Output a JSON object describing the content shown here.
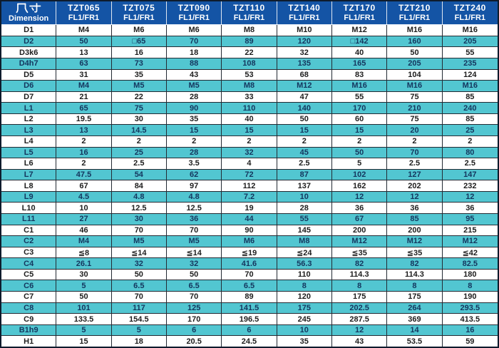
{
  "table": {
    "corner": {
      "label_cn": "尺寸",
      "label_en": "Dimension"
    },
    "columns": [
      {
        "model": "TZT065",
        "variant": "FL1/FR1"
      },
      {
        "model": "TZT075",
        "variant": "FL1/FR1"
      },
      {
        "model": "TZT090",
        "variant": "FL1/FR1"
      },
      {
        "model": "TZT110",
        "variant": "FL1/FR1"
      },
      {
        "model": "TZT140",
        "variant": "FL1/FR1"
      },
      {
        "model": "TZT170",
        "variant": "FL1/FR1"
      },
      {
        "model": "TZT210",
        "variant": "FL1/FR1"
      },
      {
        "model": "TZT240",
        "variant": "FL1/FR1"
      }
    ],
    "rows": [
      {
        "label": "D1",
        "values": [
          "M4",
          "M6",
          "M6",
          "M8",
          "M10",
          "M12",
          "M16",
          "M16"
        ]
      },
      {
        "label": "D2",
        "values": [
          "50",
          "□65",
          "70",
          "89",
          "120",
          "□142",
          "160",
          "205"
        ]
      },
      {
        "label": "D3k6",
        "values": [
          "13",
          "16",
          "18",
          "22",
          "32",
          "40",
          "50",
          "55"
        ]
      },
      {
        "label": "D4h7",
        "values": [
          "63",
          "73",
          "88",
          "108",
          "135",
          "165",
          "205",
          "235"
        ]
      },
      {
        "label": "D5",
        "values": [
          "31",
          "35",
          "43",
          "53",
          "68",
          "83",
          "104",
          "124"
        ]
      },
      {
        "label": "D6",
        "values": [
          "M4",
          "M5",
          "M5",
          "M8",
          "M12",
          "M16",
          "M16",
          "M16"
        ]
      },
      {
        "label": "D7",
        "values": [
          "21",
          "22",
          "28",
          "33",
          "47",
          "55",
          "75",
          "85"
        ]
      },
      {
        "label": "L1",
        "values": [
          "65",
          "75",
          "90",
          "110",
          "140",
          "170",
          "210",
          "240"
        ]
      },
      {
        "label": "L2",
        "values": [
          "19.5",
          "30",
          "35",
          "40",
          "50",
          "60",
          "75",
          "85"
        ]
      },
      {
        "label": "L3",
        "values": [
          "13",
          "14.5",
          "15",
          "15",
          "15",
          "15",
          "20",
          "25"
        ]
      },
      {
        "label": "L4",
        "values": [
          "2",
          "2",
          "2",
          "2",
          "2",
          "2",
          "2",
          "2"
        ]
      },
      {
        "label": "L5",
        "values": [
          "16",
          "25",
          "28",
          "32",
          "45",
          "50",
          "70",
          "80"
        ]
      },
      {
        "label": "L6",
        "values": [
          "2",
          "2.5",
          "3.5",
          "4",
          "2.5",
          "5",
          "2.5",
          "2.5"
        ]
      },
      {
        "label": "L7",
        "values": [
          "47.5",
          "54",
          "62",
          "72",
          "87",
          "102",
          "127",
          "147"
        ]
      },
      {
        "label": "L8",
        "values": [
          "67",
          "84",
          "97",
          "112",
          "137",
          "162",
          "202",
          "232"
        ]
      },
      {
        "label": "L9",
        "values": [
          "4.5",
          "4.8",
          "4.8",
          "7.2",
          "10",
          "12",
          "12",
          "12"
        ]
      },
      {
        "label": "L10",
        "values": [
          "10",
          "12.5",
          "12.5",
          "19",
          "28",
          "36",
          "36",
          "36"
        ]
      },
      {
        "label": "L11",
        "values": [
          "27",
          "30",
          "36",
          "44",
          "55",
          "67",
          "85",
          "95"
        ]
      },
      {
        "label": "C1",
        "values": [
          "46",
          "70",
          "70",
          "90",
          "145",
          "200",
          "200",
          "215"
        ]
      },
      {
        "label": "C2",
        "values": [
          "M4",
          "M5",
          "M5",
          "M6",
          "M8",
          "M12",
          "M12",
          "M12"
        ]
      },
      {
        "label": "C3",
        "values": [
          "≦8",
          "≦14",
          "≦14",
          "≦19",
          "≦24",
          "≦35",
          "≦35",
          "≦42"
        ]
      },
      {
        "label": "C4",
        "values": [
          "26.1",
          "32",
          "32",
          "41.6",
          "56.3",
          "82",
          "82",
          "82.5"
        ]
      },
      {
        "label": "C5",
        "values": [
          "30",
          "50",
          "50",
          "70",
          "110",
          "114.3",
          "114.3",
          "180"
        ]
      },
      {
        "label": "C6",
        "values": [
          "5",
          "6.5",
          "6.5",
          "6.5",
          "8",
          "8",
          "8",
          "8"
        ]
      },
      {
        "label": "C7",
        "values": [
          "50",
          "70",
          "70",
          "89",
          "120",
          "175",
          "175",
          "190"
        ]
      },
      {
        "label": "C8",
        "values": [
          "101",
          "117",
          "125",
          "141.5",
          "175",
          "202.5",
          "264",
          "293.5"
        ]
      },
      {
        "label": "C9",
        "values": [
          "133.5",
          "154.5",
          "170",
          "196.5",
          "245",
          "287.5",
          "369",
          "413.5"
        ]
      },
      {
        "label": "B1h9",
        "values": [
          "5",
          "5",
          "6",
          "6",
          "10",
          "12",
          "14",
          "16"
        ]
      },
      {
        "label": "H1",
        "values": [
          "15",
          "18",
          "20.5",
          "24.5",
          "35",
          "43",
          "53.5",
          "59"
        ]
      }
    ]
  },
  "colors": {
    "header_bg": "#1454a5",
    "header_text": "#ffffff",
    "row_alt_bg": "#52c6d1",
    "row_bg": "#ffffff",
    "grid_line": "#232a33",
    "alt_row_text": "#14365e",
    "row_text": "#1d1d1d"
  }
}
